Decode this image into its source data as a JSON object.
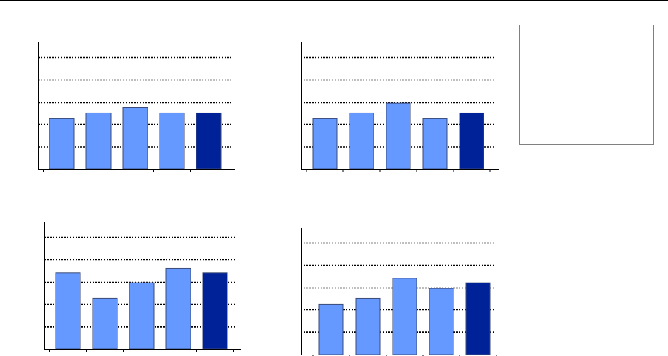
{
  "colors": {
    "bar": "#6699ff",
    "bar_highlight": "#002299",
    "bar_stroke": "#3a4a78",
    "gridline": "#000000",
    "axis": "#000000",
    "legend_border": "#808080"
  },
  "legend": {
    "entries": []
  },
  "chart_data": [
    {
      "type": "bar",
      "title": "",
      "xlabel": "",
      "ylabel": "",
      "ylim": [
        0,
        5.5
      ],
      "grid": true,
      "gridlines": [
        1,
        2,
        3,
        4,
        5
      ],
      "legend": "right",
      "values": [
        2.25,
        2.5,
        2.75,
        2.5,
        2.5
      ],
      "highlight_index": 4
    },
    {
      "type": "bar",
      "title": "",
      "xlabel": "",
      "ylabel": "",
      "ylim": [
        0,
        5.5
      ],
      "grid": true,
      "gridlines": [
        1,
        2,
        3,
        4,
        5
      ],
      "legend": "right",
      "values": [
        2.25,
        2.5,
        2.95,
        2.25,
        2.5
      ],
      "highlight_index": 4
    },
    {
      "type": "bar",
      "title": "",
      "xlabel": "",
      "ylabel": "",
      "ylim": [
        0,
        5.5
      ],
      "grid": true,
      "gridlines": [
        1,
        2,
        3,
        4,
        5
      ],
      "legend": "right",
      "values": [
        3.4,
        2.25,
        2.95,
        3.6,
        3.4
      ],
      "highlight_index": 4
    },
    {
      "type": "bar",
      "title": "",
      "xlabel": "",
      "ylabel": "",
      "ylim": [
        0,
        5.5
      ],
      "grid": true,
      "gridlines": [
        1,
        2,
        3,
        4,
        5
      ],
      "legend": "right",
      "values": [
        2.25,
        2.5,
        3.4,
        2.95,
        3.2
      ],
      "highlight_index": 4
    }
  ]
}
